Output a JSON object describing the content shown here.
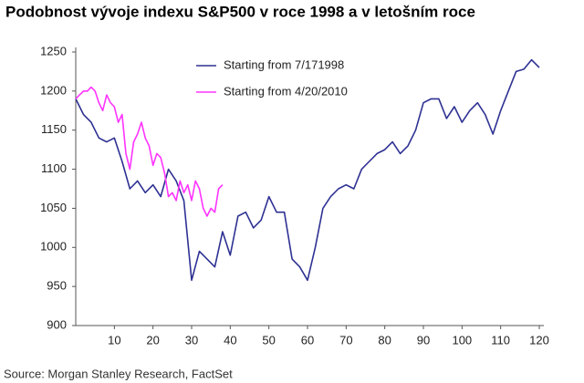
{
  "chart_data": {
    "type": "line",
    "title": "Podobnost vývoje indexu S&P500 v roce 1998 a v letošním roce",
    "source": "Source: Morgan Stanley Research, FactSet",
    "xlim": [
      0,
      120
    ],
    "xticks": [
      10,
      20,
      30,
      40,
      50,
      60,
      70,
      80,
      90,
      100,
      110,
      120
    ],
    "ylim": [
      900,
      1250
    ],
    "yticks": [
      900,
      950,
      1000,
      1050,
      1100,
      1150,
      1200,
      1250
    ],
    "grid": false,
    "legend": "upper left",
    "series": [
      {
        "name": "Starting from 7/171998",
        "color": "#2e3192",
        "x": [
          0,
          2,
          4,
          6,
          8,
          10,
          12,
          14,
          16,
          18,
          20,
          22,
          24,
          26,
          28,
          30,
          32,
          34,
          36,
          38,
          40,
          42,
          44,
          46,
          48,
          50,
          52,
          54,
          56,
          58,
          60,
          62,
          64,
          66,
          68,
          70,
          72,
          74,
          76,
          78,
          80,
          82,
          84,
          86,
          88,
          90,
          92,
          94,
          96,
          98,
          100,
          102,
          104,
          106,
          108,
          110,
          112,
          114,
          116,
          118,
          120
        ],
        "values": [
          1190,
          1170,
          1160,
          1140,
          1135,
          1140,
          1110,
          1075,
          1085,
          1070,
          1080,
          1065,
          1100,
          1085,
          1060,
          958,
          995,
          985,
          975,
          1020,
          990,
          1040,
          1045,
          1025,
          1035,
          1065,
          1045,
          1045,
          985,
          975,
          958,
          1000,
          1050,
          1065,
          1075,
          1080,
          1075,
          1100,
          1110,
          1120,
          1125,
          1135,
          1120,
          1130,
          1150,
          1185,
          1190,
          1190,
          1165,
          1180,
          1160,
          1175,
          1185,
          1170,
          1145,
          1175,
          1200,
          1225,
          1228,
          1240,
          1230
        ]
      },
      {
        "name": "Starting from 4/20/2010",
        "color": "#ff33ff",
        "x": [
          0,
          1,
          2,
          3,
          4,
          5,
          6,
          7,
          8,
          9,
          10,
          11,
          12,
          13,
          14,
          15,
          16,
          17,
          18,
          19,
          20,
          21,
          22,
          23,
          24,
          25,
          26,
          27,
          28,
          29,
          30,
          31,
          32,
          33,
          34,
          35,
          36,
          37,
          38
        ],
        "values": [
          1190,
          1195,
          1200,
          1200,
          1205,
          1200,
          1185,
          1175,
          1195,
          1185,
          1180,
          1160,
          1170,
          1120,
          1100,
          1135,
          1145,
          1160,
          1140,
          1130,
          1105,
          1120,
          1115,
          1095,
          1065,
          1070,
          1060,
          1085,
          1070,
          1080,
          1060,
          1085,
          1075,
          1050,
          1040,
          1050,
          1045,
          1075,
          1080
        ]
      }
    ]
  }
}
